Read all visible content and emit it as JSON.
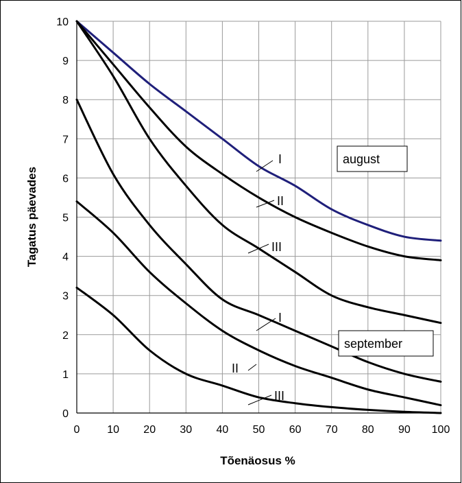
{
  "chart_data": {
    "type": "line",
    "title": "",
    "xlabel": "Tõenäosus %",
    "ylabel": "Tagatus päevades",
    "xlim": [
      0,
      100
    ],
    "ylim": [
      0,
      10
    ],
    "x_ticks": [
      "0",
      "10",
      "20",
      "30",
      "40",
      "50",
      "60",
      "70",
      "80",
      "90",
      "100"
    ],
    "y_ticks": [
      "0",
      "1",
      "2",
      "3",
      "4",
      "5",
      "6",
      "7",
      "8",
      "9",
      "10"
    ],
    "grid": true,
    "x": [
      0,
      10,
      20,
      30,
      40,
      50,
      60,
      70,
      80,
      90,
      100
    ],
    "series": [
      {
        "name": "I",
        "group": "august",
        "color": "#1f1f7a",
        "values": [
          10,
          9.2,
          8.4,
          7.7,
          7.0,
          6.3,
          5.8,
          5.2,
          4.8,
          4.5,
          4.4
        ]
      },
      {
        "name": "II",
        "group": "august",
        "color": "#000000",
        "values": [
          10,
          8.9,
          7.8,
          6.8,
          6.1,
          5.5,
          5.0,
          4.6,
          4.25,
          4.0,
          3.9
        ]
      },
      {
        "name": "III",
        "group": "august",
        "color": "#000000",
        "values": [
          10,
          8.6,
          7.0,
          5.8,
          4.8,
          4.2,
          3.6,
          3.0,
          2.7,
          2.5,
          2.3
        ]
      },
      {
        "name": "I",
        "group": "september",
        "color": "#000000",
        "values": [
          8.0,
          6.1,
          4.8,
          3.8,
          2.9,
          2.5,
          2.1,
          1.7,
          1.3,
          1.0,
          0.8
        ]
      },
      {
        "name": "II",
        "group": "september",
        "color": "#000000",
        "values": [
          5.4,
          4.6,
          3.6,
          2.8,
          2.1,
          1.6,
          1.2,
          0.9,
          0.6,
          0.4,
          0.2
        ]
      },
      {
        "name": "III",
        "group": "september",
        "color": "#000000",
        "values": [
          3.2,
          2.5,
          1.6,
          1.0,
          0.7,
          0.4,
          0.25,
          0.15,
          0.08,
          0.03,
          0.0
        ]
      }
    ],
    "month_labels": [
      "august",
      "september"
    ],
    "curve_labels": [
      "I",
      "II",
      "III",
      "I",
      "II",
      "III"
    ]
  }
}
